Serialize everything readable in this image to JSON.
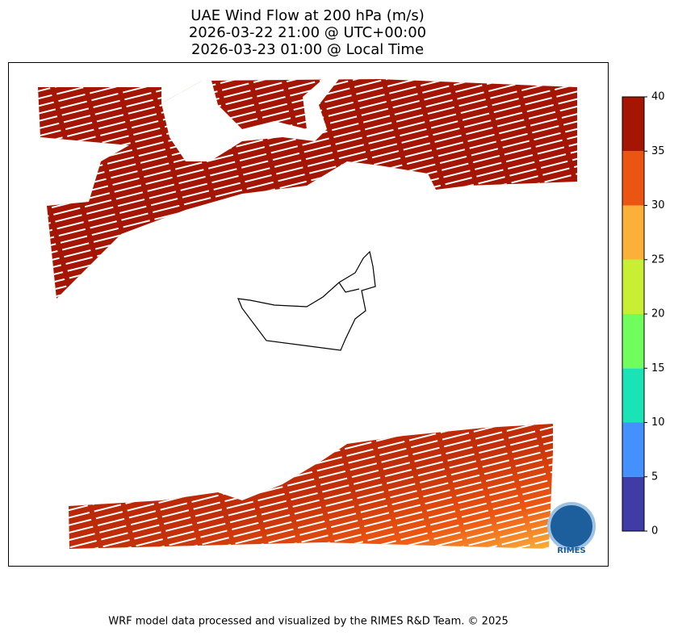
{
  "title_lines": [
    "UAE Wind Flow at 200 hPa (m/s)",
    "2026-03-22 21:00 @ UTC+00:00",
    "2026-03-23 01:00 @ Local Time"
  ],
  "colorbar": {
    "lim": [
      0,
      40
    ],
    "ticks": [
      0,
      5,
      10,
      15,
      20,
      25,
      30,
      35,
      40
    ],
    "colors": [
      "#3f3ca5",
      "#4490fe",
      "#1ae4b6",
      "#6ffe5c",
      "#c8ef34",
      "#fbb03a",
      "#ec5511",
      "#a51503"
    ]
  },
  "logo": "RIMES",
  "footer": "WRF model data processed and visualized by the RIMES R&D Team. © 2025"
}
